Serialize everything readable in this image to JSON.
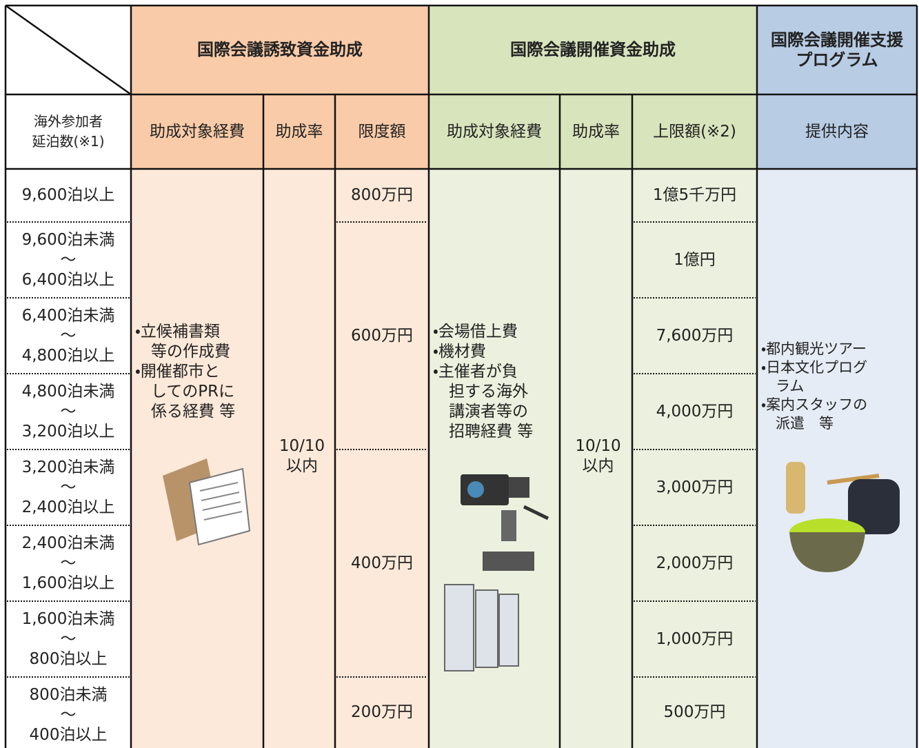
{
  "header": {
    "groups": [
      "国際会議誘致資金助成",
      "国際会議開催資金助成",
      [
        "国際会議開催支援",
        "プログラム"
      ]
    ],
    "columns": [
      [
        "海外参加者",
        "延泊数(※1)"
      ],
      "助成対象経費",
      "助成率",
      "限度額",
      "助成対象経費",
      "助成率",
      "上限額(※2)",
      "提供内容"
    ]
  },
  "rows": [
    [
      "9,600泊以上"
    ],
    [
      "9,600泊未満",
      "～",
      "6,400泊以上"
    ],
    [
      "6,400泊未満",
      "～",
      "4,800泊以上"
    ],
    [
      "4,800泊未満",
      "～",
      "3,200泊以上"
    ],
    [
      "3,200泊未満",
      "～",
      "2,400泊以上"
    ],
    [
      "2,400泊未満",
      "～",
      "1,600泊以上"
    ],
    [
      "1,600泊未満",
      "～",
      "800泊以上"
    ],
    [
      "800泊未満",
      "～",
      "400泊以上"
    ]
  ],
  "invitation": {
    "expenses": [
      "・立候補書類",
      "　等の作成費",
      "・開催都市と",
      "　してのPRに",
      "　係る経費 等"
    ],
    "rate": [
      "10/10",
      "以内"
    ],
    "limits": [
      "800万円",
      "600万円",
      "400万円",
      "200万円"
    ]
  },
  "hosting": {
    "expenses": [
      "・会場借上費",
      "・機材費",
      "・主催者が負",
      "　担する海外",
      "　講演者等の",
      "　招聘経費 等"
    ],
    "rate": [
      "10/10",
      "以内"
    ],
    "caps": [
      "1億5千万円",
      "1億円",
      "7,600万円",
      "4,000万円",
      "3,000万円",
      "2,000万円",
      "1,000万円",
      "500万円"
    ]
  },
  "support": {
    "content": [
      "・都内観光ツアー",
      "・日本文化プログ",
      "　ラム",
      "・案内スタッフの",
      "　派遣　等"
    ]
  }
}
